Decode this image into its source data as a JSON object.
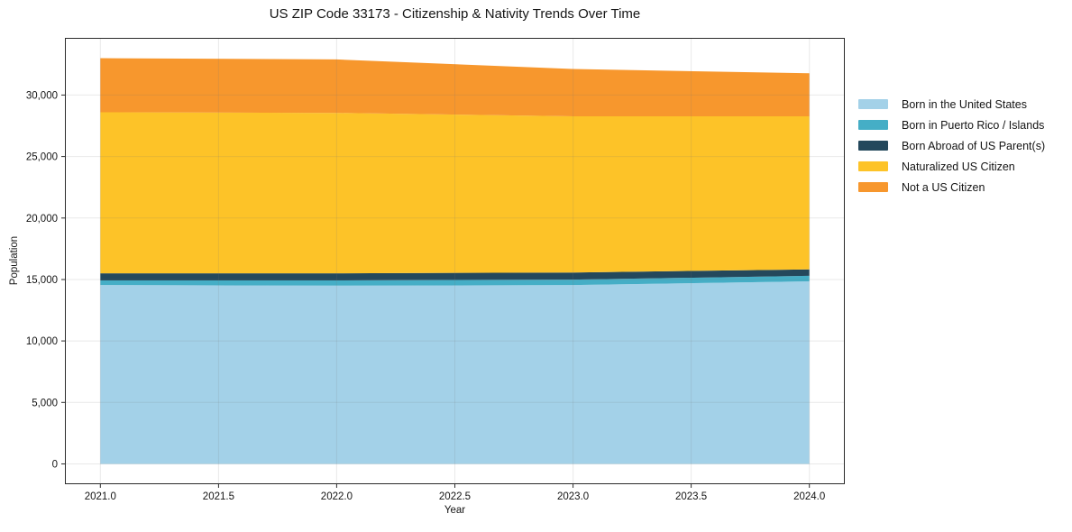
{
  "title": "US ZIP Code 33173 - Citizenship & Nativity Trends Over Time",
  "chart_data": {
    "type": "area",
    "stacked": true,
    "title": "US ZIP Code 33173 - Citizenship & Nativity Trends Over Time",
    "xlabel": "Year",
    "ylabel": "Population",
    "x": [
      2021,
      2022,
      2023,
      2024
    ],
    "series": [
      {
        "name": "Born in the United States",
        "color": "#a3d1e8",
        "values": [
          14550,
          14500,
          14550,
          14850
        ]
      },
      {
        "name": "Born in Puerto Rico / Islands",
        "color": "#45aec6",
        "values": [
          370,
          420,
          440,
          450
        ]
      },
      {
        "name": "Born Abroad of US Parent(s)",
        "color": "#24485c",
        "values": [
          580,
          580,
          580,
          520
        ]
      },
      {
        "name": "Naturalized US Citizen",
        "color": "#fdc328",
        "values": [
          13100,
          13050,
          12700,
          12450
        ]
      },
      {
        "name": "Not a US Citizen",
        "color": "#f7972d",
        "values": [
          4400,
          4350,
          3850,
          3500
        ]
      }
    ],
    "totals": [
      33000,
      32900,
      32120,
      31770
    ],
    "xlim": [
      2020.85,
      2024.15
    ],
    "ylim": [
      -1650,
      34650
    ],
    "xticks": {
      "values": [
        2021.0,
        2021.5,
        2022.0,
        2022.5,
        2023.0,
        2023.5,
        2024.0
      ],
      "labels": [
        "2021.0",
        "2021.5",
        "2022.0",
        "2022.5",
        "2023.0",
        "2023.5",
        "2024.0"
      ]
    },
    "yticks": {
      "values": [
        0,
        5000,
        10000,
        15000,
        20000,
        25000,
        30000
      ],
      "labels": [
        "0",
        "5,000",
        "10,000",
        "15,000",
        "20,000",
        "25,000",
        "30,000"
      ]
    },
    "grid": true,
    "legend_position": "right-outside"
  }
}
